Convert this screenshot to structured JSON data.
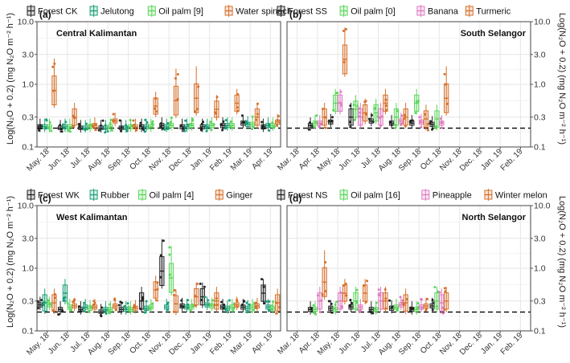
{
  "figure": {
    "ylabel_left": "Log(N₂O + 0.2) (mg N₂O m⁻² h⁻¹)",
    "ylabel_right": "Log(N₂O + 0.2) (mg N₂O m⁻² h⁻¹)"
  },
  "colors": {
    "black": "#222222",
    "teal": "#1a9e77",
    "green": "#5cd65c",
    "orange": "#d6702a",
    "pink": "#e07ac0",
    "grid": "#e6e6e6",
    "reference_line": "#000000"
  },
  "chart_data": [
    {
      "type": "box",
      "panel_tag": "(a)",
      "region": "Central Kalimantan",
      "axis_side": "left",
      "y_scale": "log",
      "ylim": [
        0.1,
        10.0
      ],
      "yticks": [
        "0.1",
        "0.3",
        "1.0",
        "3.0",
        "10.0"
      ],
      "reference_y": 0.2,
      "categories": [
        "May. 18",
        "Jun. 18",
        "Jul. 18",
        "Aug. 18",
        "Sep. 18",
        "Oct. 18",
        "Nov. 18",
        "Dec. 18",
        "Jan. 19",
        "Feb. 19",
        "Mar. 19",
        "Apr. 19"
      ],
      "grid": true,
      "legend_position": "top",
      "series": [
        {
          "name": "Forest CK",
          "color": "#222222",
          "medians": [
            0.21,
            0.2,
            0.2,
            0.2,
            0.2,
            0.21,
            0.22,
            0.21,
            0.21,
            0.22,
            0.24,
            0.21
          ]
        },
        {
          "name": "Jelutong",
          "color": "#1a9e77",
          "medians": [
            0.21,
            0.21,
            0.2,
            0.2,
            0.2,
            0.21,
            0.21,
            0.21,
            0.21,
            0.22,
            0.23,
            0.22
          ]
        },
        {
          "name": "Oil palm [9]",
          "color": "#5cd65c",
          "medians": [
            0.21,
            0.21,
            0.21,
            0.21,
            0.21,
            0.21,
            0.22,
            0.22,
            0.22,
            0.22,
            0.23,
            0.22
          ]
        },
        {
          "name": "Water spinach",
          "color": "#d6702a",
          "medians": [
            0.8,
            0.3,
            0.22,
            0.26,
            0.21,
            0.45,
            0.55,
            0.6,
            0.4,
            0.5,
            0.3,
            0.25
          ]
        }
      ]
    },
    {
      "type": "box",
      "panel_tag": "(b)",
      "region": "South Selangor",
      "axis_side": "right",
      "y_scale": "log",
      "ylim": [
        0.1,
        10.0
      ],
      "yticks": [
        "0.1",
        "0.3",
        "1.0",
        "3.0",
        "10.0"
      ],
      "reference_y": 0.2,
      "categories": [
        "Mar. 18",
        "Apr. 18",
        "May. 18",
        "Jun. 18",
        "Jul. 18",
        "Aug. 18",
        "Sep. 18",
        "Oct. 18",
        "Nov. 18",
        "Dec. 18",
        "Jan. 19",
        "Feb. 19"
      ],
      "grid": true,
      "legend_position": "top",
      "series": [
        {
          "name": "Forest SS",
          "color": "#222222",
          "medians": [
            null,
            0.22,
            0.25,
            0.3,
            0.26,
            0.24,
            0.24,
            0.23,
            null,
            null,
            null,
            null
          ]
        },
        {
          "name": "Oil palm [0]",
          "color": "#5cd65c",
          "medians": [
            null,
            0.24,
            0.5,
            0.4,
            0.35,
            0.3,
            0.5,
            0.28,
            null,
            null,
            null,
            null
          ]
        },
        {
          "name": "Banana",
          "color": "#e07ac0",
          "medians": [
            null,
            0.24,
            0.5,
            0.3,
            0.3,
            0.26,
            0.25,
            0.24,
            null,
            null,
            null,
            null
          ]
        },
        {
          "name": "Turmeric",
          "color": "#d6702a",
          "medians": [
            null,
            0.3,
            2.5,
            0.35,
            0.5,
            0.3,
            0.28,
            0.6,
            null,
            null,
            null,
            null
          ]
        }
      ]
    },
    {
      "type": "box",
      "panel_tag": "(c)",
      "region": "West Kalimantan",
      "axis_side": "left",
      "y_scale": "log",
      "ylim": [
        0.1,
        10.0
      ],
      "yticks": [
        "0.1",
        "0.3",
        "1.0",
        "3.0",
        "10.0"
      ],
      "reference_y": 0.2,
      "categories": [
        "May. 18",
        "Jun. 18",
        "Jul. 18",
        "Aug. 18",
        "Sep. 18",
        "Oct. 18",
        "Nov. 18",
        "Dec. 18",
        "Jan. 19",
        "Feb. 19",
        "Mar. 19",
        "Apr. 19"
      ],
      "grid": true,
      "legend_position": "top",
      "series": [
        {
          "name": "Forest WK",
          "color": "#222222",
          "medians": [
            0.26,
            0.22,
            0.22,
            0.2,
            0.22,
            0.3,
            0.9,
            0.25,
            0.35,
            0.24,
            0.24,
            0.4
          ]
        },
        {
          "name": "Rubber",
          "color": "#1a9e77",
          "medians": [
            0.28,
            0.4,
            0.24,
            0.22,
            0.22,
            0.23,
            0.24,
            0.24,
            0.26,
            0.23,
            0.23,
            0.24
          ]
        },
        {
          "name": "Oil palm [4]",
          "color": "#5cd65c",
          "medians": [
            0.26,
            0.24,
            0.23,
            0.22,
            0.22,
            0.24,
            0.7,
            0.24,
            0.25,
            0.24,
            0.24,
            0.23
          ]
        },
        {
          "name": "Ginger",
          "color": "#d6702a",
          "medians": [
            0.28,
            0.25,
            0.24,
            0.25,
            0.23,
            0.45,
            0.27,
            0.35,
            0.3,
            0.26,
            0.25,
            0.28
          ]
        }
      ]
    },
    {
      "type": "box",
      "panel_tag": "(d)",
      "region": "North Selangor",
      "axis_side": "right",
      "y_scale": "log",
      "ylim": [
        0.1,
        10.0
      ],
      "yticks": [
        "0.1",
        "0.3",
        "1.0",
        "3.0",
        "10.0"
      ],
      "reference_y": 0.2,
      "categories": [
        "Mar. 18",
        "Apr. 18",
        "May. 18",
        "Jun. 18",
        "Jul. 18",
        "Aug. 18",
        "Sep. 18",
        "Oct. 18",
        "Nov. 18",
        "Dec. 18",
        "Jan. 19",
        "Feb. 19"
      ],
      "grid": true,
      "legend_position": "top",
      "series": [
        {
          "name": "Forest NS",
          "color": "#222222",
          "medians": [
            null,
            0.22,
            0.23,
            0.24,
            0.22,
            0.23,
            0.22,
            0.25,
            null,
            null,
            null,
            null
          ]
        },
        {
          "name": "Oil palm [16]",
          "color": "#5cd65c",
          "medians": [
            null,
            0.22,
            0.22,
            0.3,
            0.22,
            0.24,
            0.22,
            0.3,
            null,
            null,
            null,
            null
          ]
        },
        {
          "name": "Pineapple",
          "color": "#e07ac0",
          "medians": [
            null,
            0.3,
            0.3,
            0.24,
            0.3,
            0.26,
            0.24,
            0.28,
            null,
            null,
            null,
            null
          ]
        },
        {
          "name": "Winter melon",
          "color": "#d6702a",
          "medians": [
            null,
            0.6,
            0.4,
            0.4,
            0.3,
            0.28,
            0.25,
            0.3,
            null,
            null,
            null,
            null
          ]
        }
      ]
    }
  ]
}
